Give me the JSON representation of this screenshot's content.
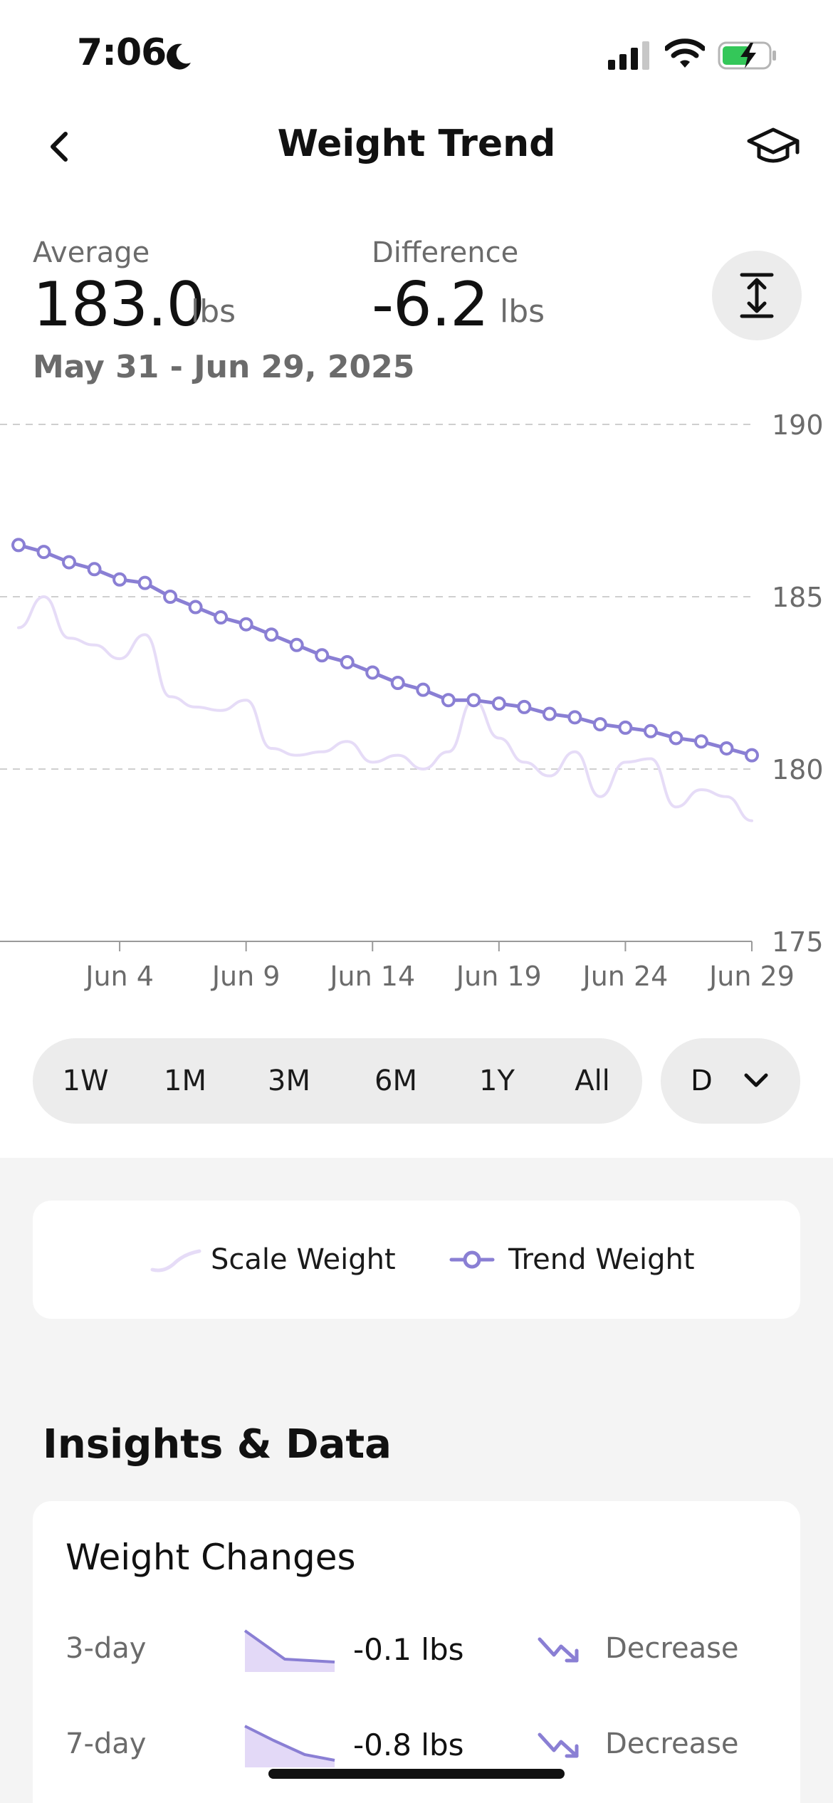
{
  "status_bar": {
    "time": "7:06"
  },
  "header": {
    "title": "Weight Trend"
  },
  "summary": {
    "average_label": "Average",
    "average_value": "183.0",
    "average_unit": "lbs",
    "difference_label": "Difference",
    "difference_value": "-6.2",
    "difference_unit": "lbs",
    "date_range": "May 31 - Jun 29, 2025"
  },
  "chart_data": {
    "type": "line",
    "ylim": [
      175,
      190
    ],
    "y_ticks": [
      "190",
      "185",
      "180",
      "175"
    ],
    "x_ticks": [
      "Jun 4",
      "Jun 9",
      "Jun 14",
      "Jun 19",
      "Jun 24",
      "Jun 29"
    ],
    "x_domain": [
      "May 31",
      "Jun 29"
    ],
    "grid": true,
    "series": [
      {
        "name": "Scale Weight",
        "color": "#e6dcf7",
        "x": [
          "May 31",
          "Jun 1",
          "Jun 2",
          "Jun 3",
          "Jun 4",
          "Jun 5",
          "Jun 6",
          "Jun 7",
          "Jun 8",
          "Jun 9",
          "Jun 10",
          "Jun 11",
          "Jun 12",
          "Jun 13",
          "Jun 14",
          "Jun 15",
          "Jun 16",
          "Jun 17",
          "Jun 18",
          "Jun 19",
          "Jun 20",
          "Jun 21",
          "Jun 22",
          "Jun 23",
          "Jun 24",
          "Jun 25",
          "Jun 26",
          "Jun 27",
          "Jun 28",
          "Jun 29"
        ],
        "values": [
          184.1,
          185.0,
          183.8,
          183.6,
          183.2,
          183.9,
          182.1,
          181.8,
          181.7,
          182.0,
          180.6,
          180.4,
          180.5,
          180.8,
          180.2,
          180.4,
          180.0,
          180.5,
          182.0,
          180.9,
          180.2,
          179.8,
          180.5,
          179.2,
          180.2,
          180.3,
          178.9,
          179.4,
          179.2,
          178.5
        ]
      },
      {
        "name": "Trend Weight",
        "color": "#8a7fd4",
        "x": [
          "May 31",
          "Jun 1",
          "Jun 2",
          "Jun 3",
          "Jun 4",
          "Jun 5",
          "Jun 6",
          "Jun 7",
          "Jun 8",
          "Jun 9",
          "Jun 10",
          "Jun 11",
          "Jun 12",
          "Jun 13",
          "Jun 14",
          "Jun 15",
          "Jun 16",
          "Jun 17",
          "Jun 18",
          "Jun 19",
          "Jun 20",
          "Jun 21",
          "Jun 22",
          "Jun 23",
          "Jun 24",
          "Jun 25",
          "Jun 26",
          "Jun 27",
          "Jun 28",
          "Jun 29"
        ],
        "values": [
          186.5,
          186.3,
          186.0,
          185.8,
          185.5,
          185.4,
          185.0,
          184.7,
          184.4,
          184.2,
          183.9,
          183.6,
          183.3,
          183.1,
          182.8,
          182.5,
          182.3,
          182.0,
          182.0,
          181.9,
          181.8,
          181.6,
          181.5,
          181.3,
          181.2,
          181.1,
          180.9,
          180.8,
          180.6,
          180.4
        ]
      }
    ]
  },
  "range_options": [
    "1W",
    "1M",
    "3M",
    "6M",
    "1Y",
    "All"
  ],
  "period_selector": {
    "label": "D"
  },
  "legend": {
    "scale_label": "Scale Weight",
    "trend_label": "Trend Weight"
  },
  "insights": {
    "heading": "Insights & Data",
    "changes_title": "Weight Changes",
    "rows": [
      {
        "period": "3-day",
        "value": "-0.1 lbs",
        "status": "Decrease"
      },
      {
        "period": "7-day",
        "value": "-0.8 lbs",
        "status": "Decrease"
      }
    ]
  },
  "colors": {
    "accent": "#8a7fd4",
    "scale_line": "#e6dcf7",
    "pill_bg": "#ececec",
    "section_bg": "#f4f4f4"
  }
}
